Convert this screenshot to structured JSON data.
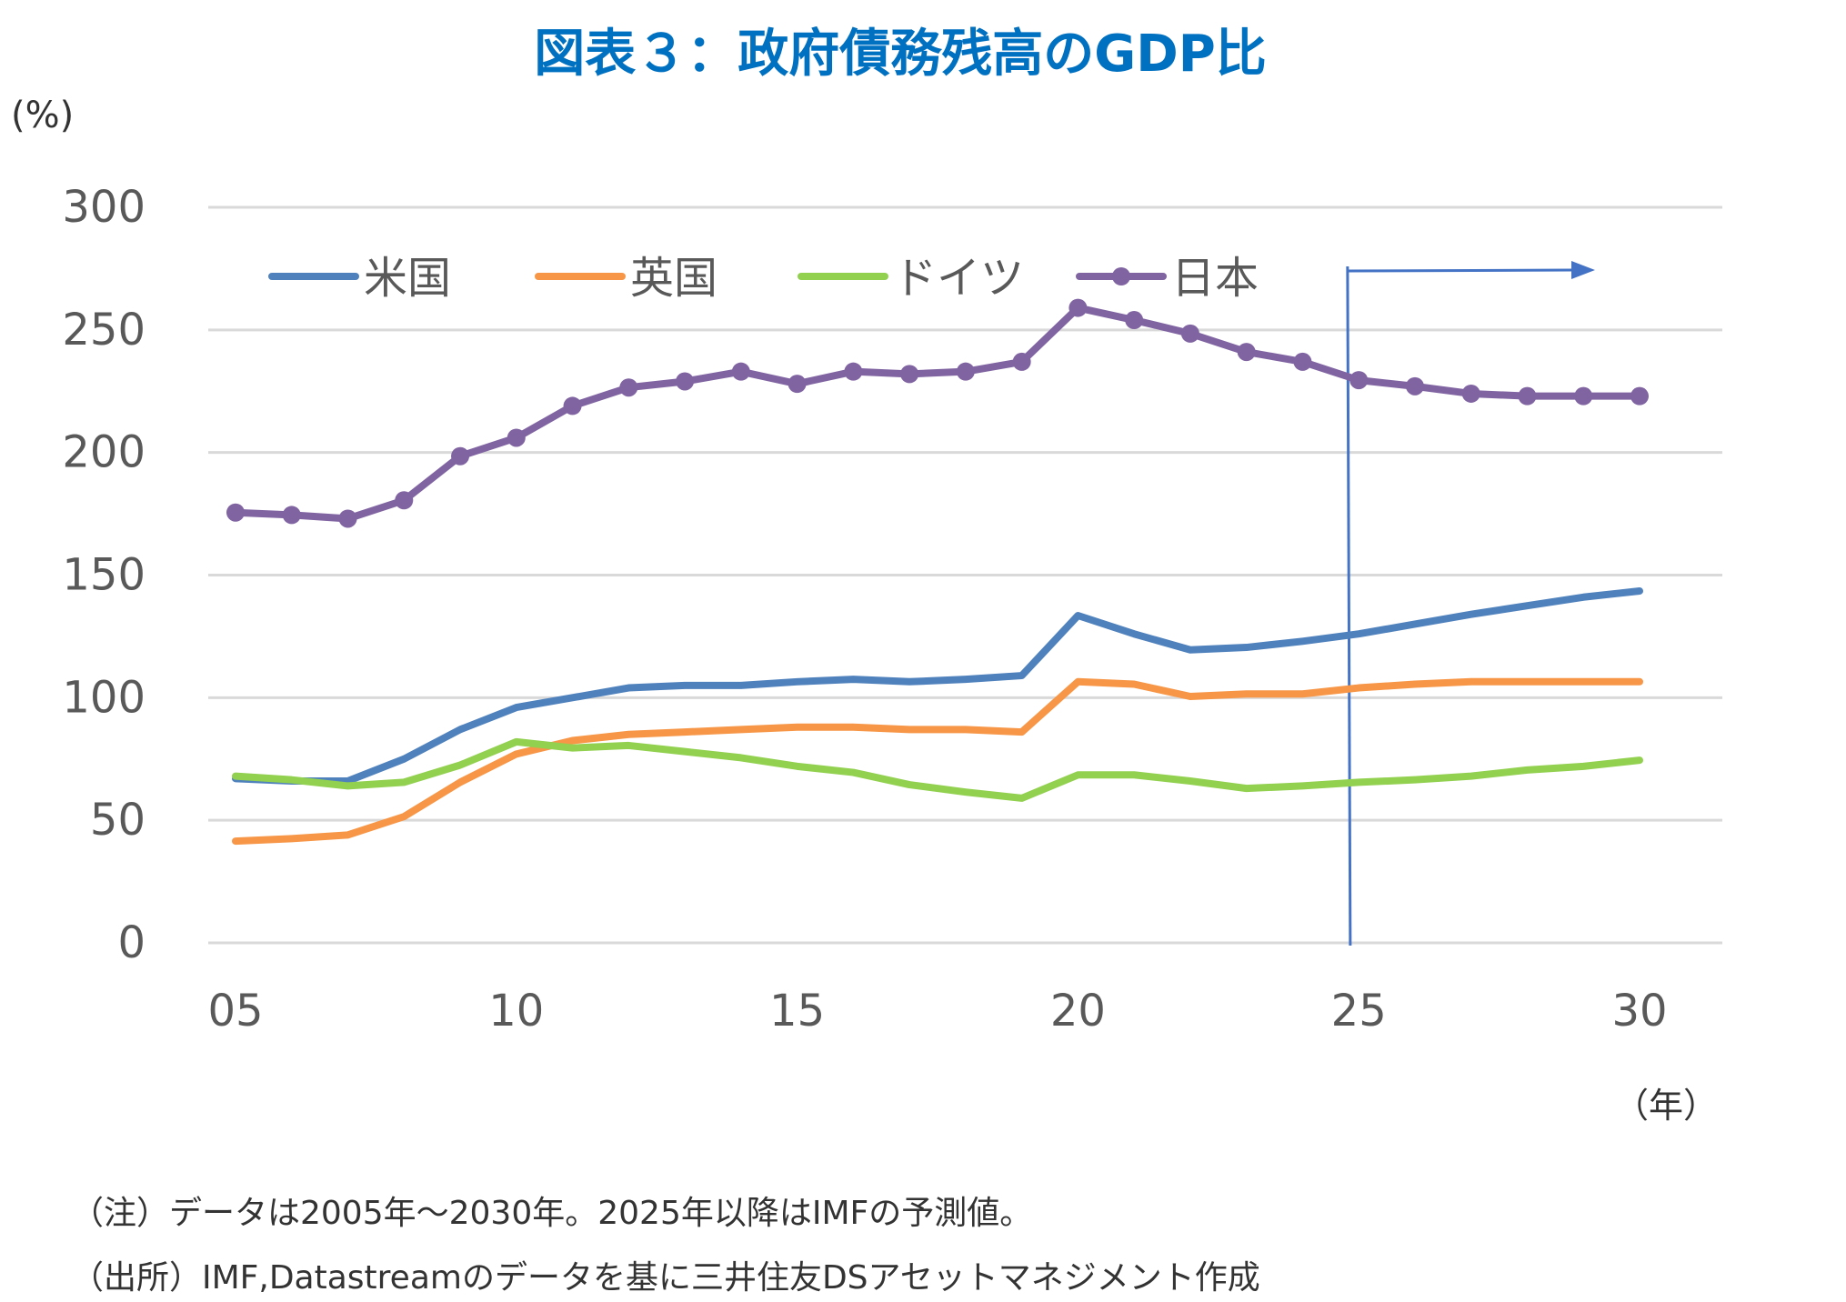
{
  "chart_data": {
    "type": "line",
    "title": "図表３：政府債務残高のGDP比",
    "ylabel": "(%)",
    "xlabel": "（年）",
    "ylim": [
      0,
      300
    ],
    "yticks": [
      "0",
      "50",
      "100",
      "150",
      "200",
      "250",
      "300"
    ],
    "xticks": [
      "05",
      "10",
      "15",
      "20",
      "25",
      "30"
    ],
    "grid": true,
    "legend_position": "top-left",
    "x": [
      2005,
      2006,
      2007,
      2008,
      2009,
      2010,
      2011,
      2012,
      2013,
      2014,
      2015,
      2016,
      2017,
      2018,
      2019,
      2020,
      2021,
      2022,
      2023,
      2024,
      2025,
      2026,
      2027,
      2028,
      2029,
      2030
    ],
    "series": [
      {
        "name": "米国",
        "color": "#4f81bd",
        "markers": false,
        "values": [
          67,
          66,
          66,
          75,
          87,
          96,
          100,
          104,
          105,
          105,
          106.5,
          107.5,
          106.5,
          107.5,
          109,
          133.5,
          126,
          119.5,
          120.5,
          123,
          126,
          130,
          134,
          137.5,
          141,
          143.5
        ]
      },
      {
        "name": "英国",
        "color": "#f79646",
        "markers": false,
        "values": [
          41.5,
          42.5,
          44,
          51.5,
          65.5,
          77,
          82.5,
          85,
          86,
          87,
          88,
          88,
          87,
          87,
          86,
          106.5,
          105.5,
          100.5,
          101.5,
          101.5,
          104,
          105.5,
          106.5,
          106.5,
          106.5,
          106.5
        ]
      },
      {
        "name": "ドイツ",
        "color": "#92d050",
        "markers": false,
        "values": [
          68,
          66.5,
          64,
          65.5,
          72.5,
          82,
          79.5,
          80.5,
          78,
          75.5,
          72,
          69.5,
          64.5,
          61.5,
          59,
          68.5,
          68.5,
          66,
          63,
          64,
          65.5,
          66.5,
          68,
          70.5,
          72,
          74.5
        ]
      },
      {
        "name": "日本",
        "color": "#8064a2",
        "markers": true,
        "values": [
          175.5,
          174.5,
          173,
          180.5,
          198.5,
          206,
          219,
          226.5,
          229,
          233,
          228,
          233,
          232,
          233,
          237,
          259,
          254,
          248.5,
          241,
          237,
          229.5,
          227,
          224,
          223,
          223,
          223
        ]
      }
    ],
    "annotation": {
      "type": "forecast-marker",
      "from_x": 2024.8,
      "color": "#4472c4"
    }
  },
  "notes": [
    "（注）データは2005年～2030年。2025年以降はIMFの予測値。",
    "（出所）IMF,Datastreamのデータを基に三井住友DSアセットマネジメント作成"
  ]
}
